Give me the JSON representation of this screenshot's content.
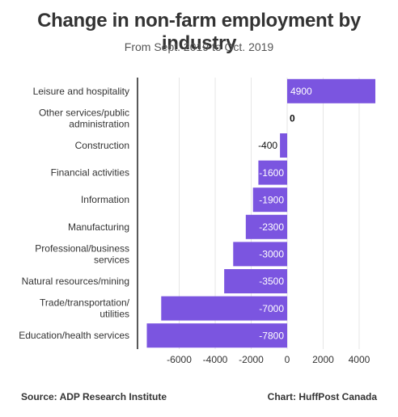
{
  "header": {
    "title": "Change in non-farm employment by industry",
    "subtitle": "From Sept. 2019 to Oct. 2019"
  },
  "footer": {
    "source": "Source: ADP Research Institute",
    "credit": "Chart: HuffPost Canada"
  },
  "colors": {
    "bar": "#7b55e0",
    "grid": "#e6e6e6",
    "axis_line": "#222222",
    "text": "#333333"
  },
  "chart_data": {
    "type": "bar",
    "orientation": "horizontal",
    "title": "Change in non-farm employment by industry",
    "subtitle": "From Sept. 2019 to Oct. 2019",
    "categories": [
      [
        "Leisure and hospitality"
      ],
      [
        "Other services/public",
        "administration"
      ],
      [
        "Construction"
      ],
      [
        "Financial activities"
      ],
      [
        "Information"
      ],
      [
        "Manufacturing"
      ],
      [
        "Professional/business",
        "services"
      ],
      [
        "Natural resources/mining"
      ],
      [
        "Trade/transportation/",
        "utilities"
      ],
      [
        "Education/health services"
      ]
    ],
    "values": [
      4900,
      0,
      -400,
      -1600,
      -1900,
      -2300,
      -3000,
      -3500,
      -7000,
      -7800
    ],
    "value_labels": [
      "4900",
      "0",
      "-400",
      "-1600",
      "-1900",
      "-2300",
      "-3000",
      "-3500",
      "-7000",
      "-7800"
    ],
    "xlim": [
      -7800,
      4900
    ],
    "xticks": [
      -6000,
      -4000,
      -2000,
      0,
      2000,
      4000
    ],
    "xtick_labels": [
      "-6000",
      "-4000",
      "-2000",
      "0",
      "2000",
      "4000"
    ],
    "grid": true,
    "legend": "none"
  }
}
